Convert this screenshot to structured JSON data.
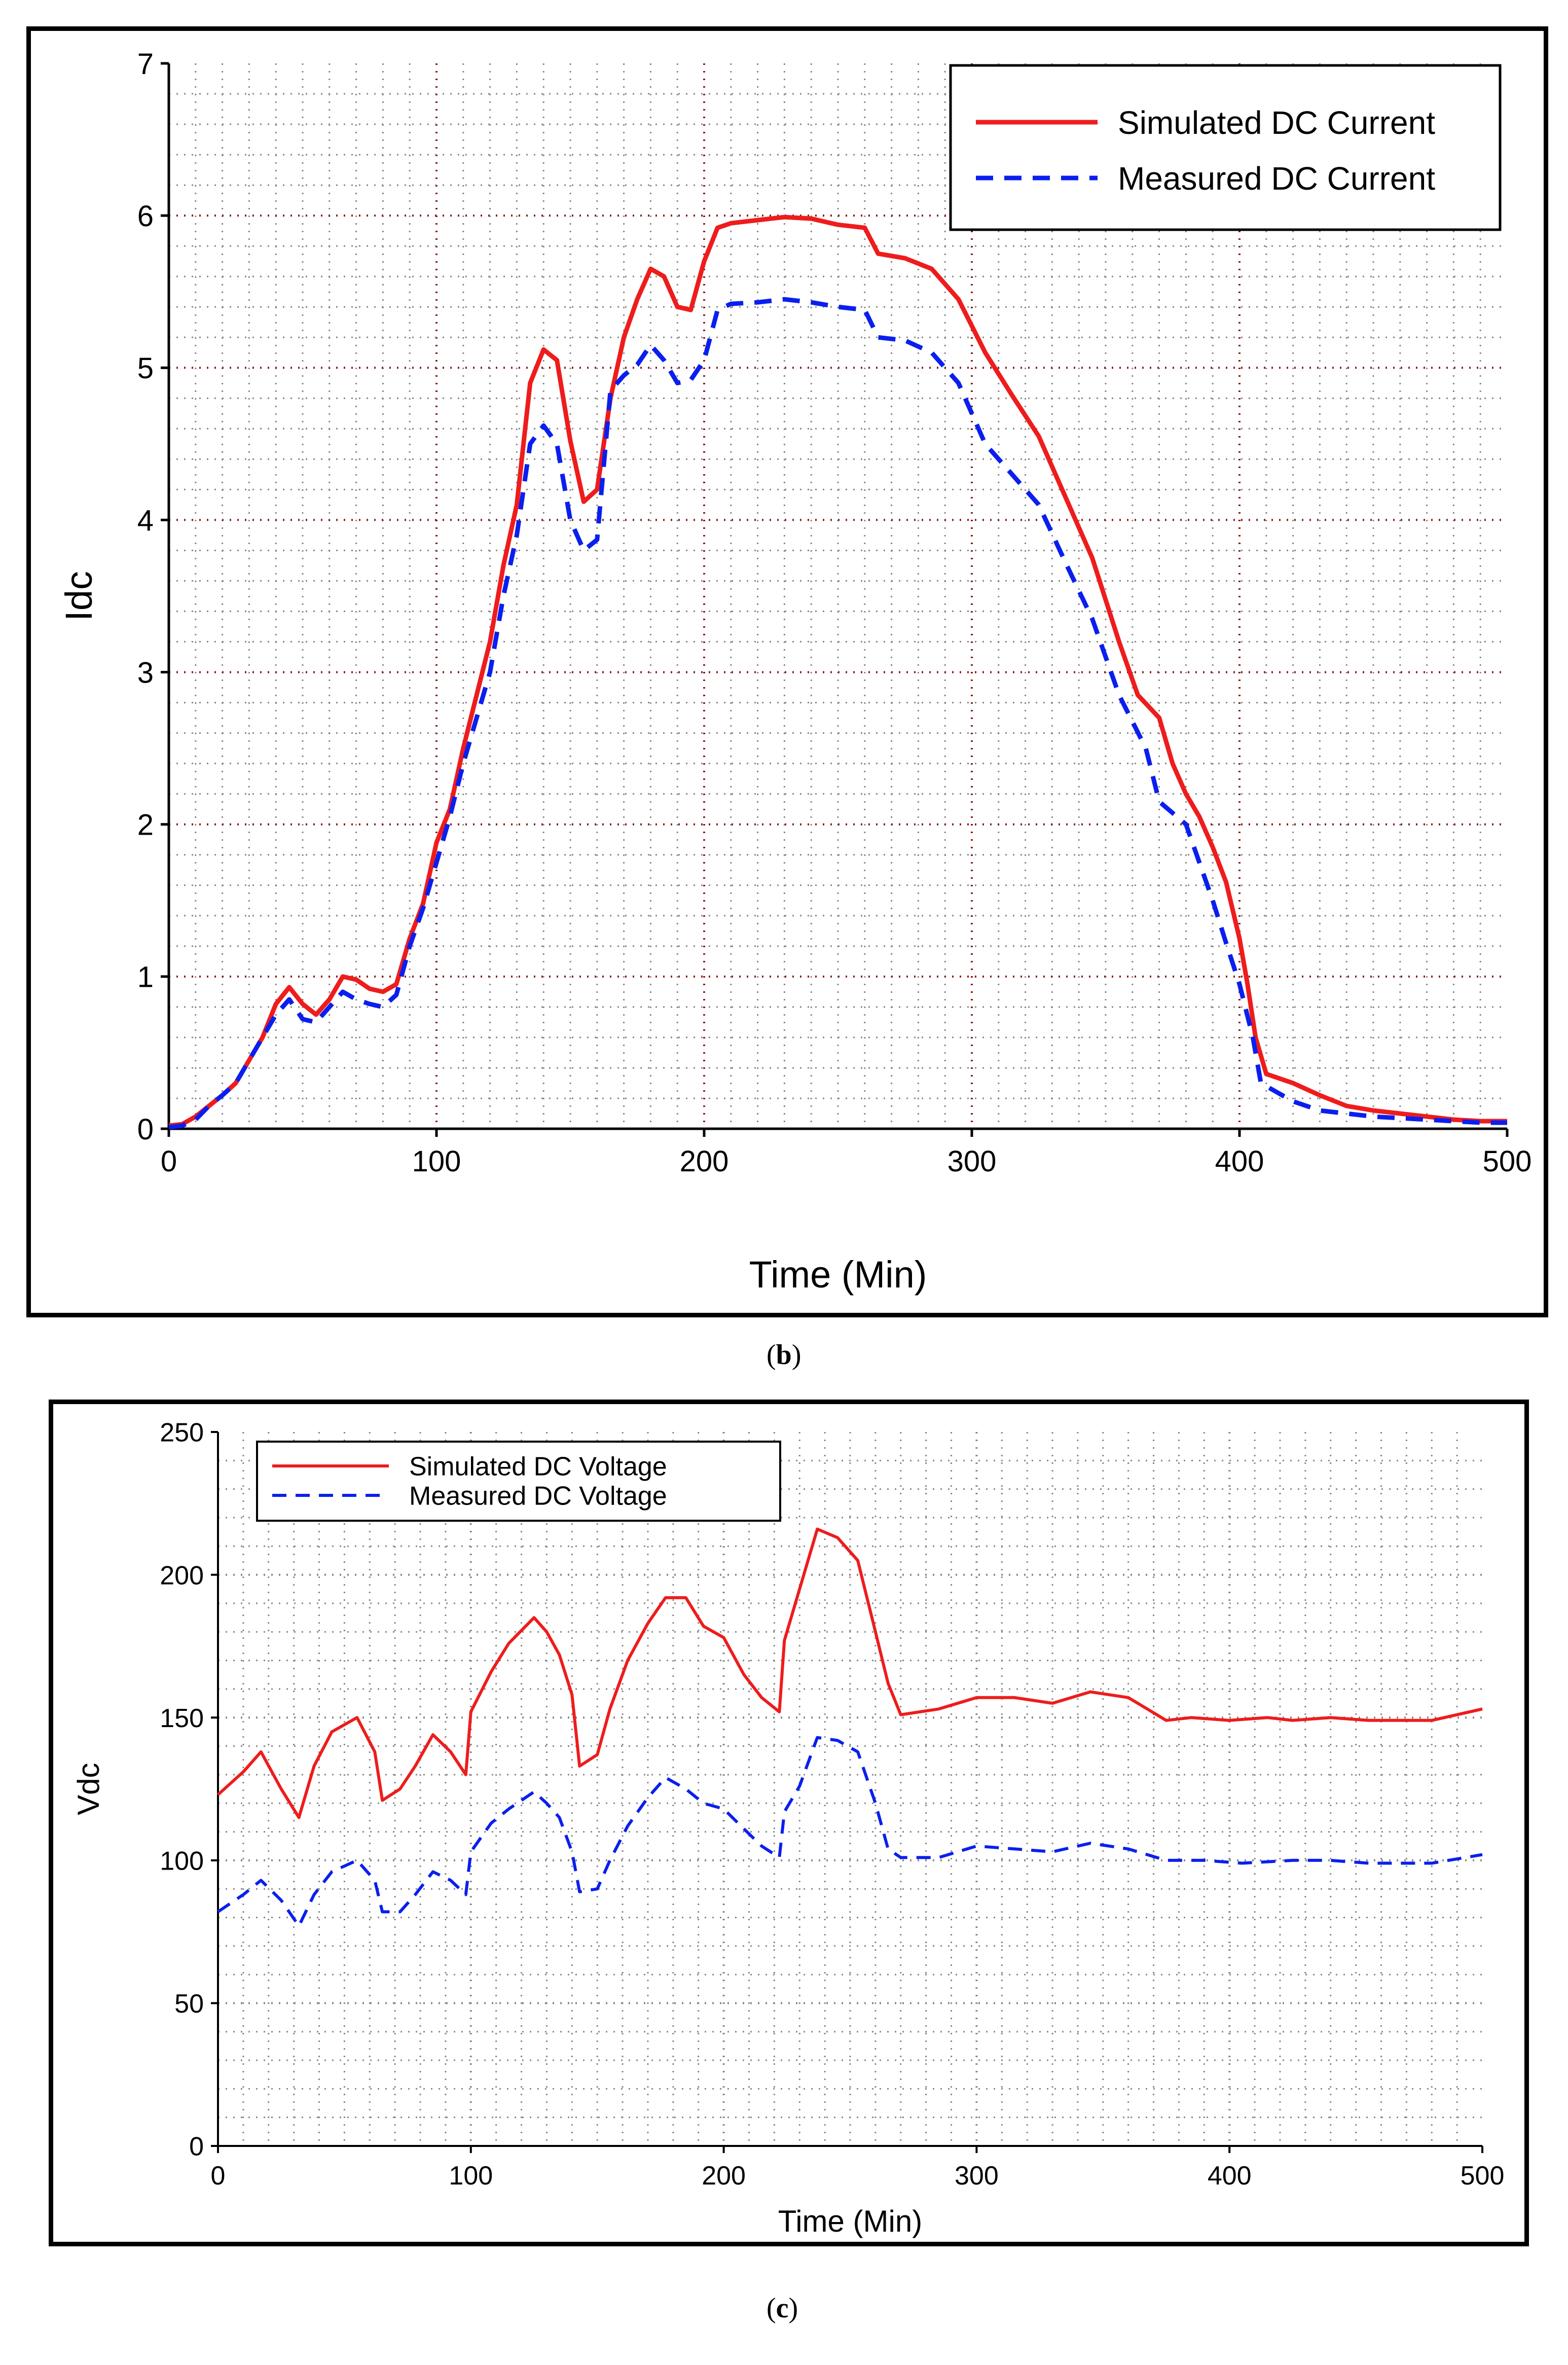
{
  "colors": {
    "simulated": "#ee1c1c",
    "measured": "#0a1fee",
    "grid": "#888888",
    "axis": "#000000"
  },
  "chart_data": [
    {
      "id": "chart-b",
      "type": "line",
      "caption_letter": "b",
      "xlabel": "Time (Min)",
      "ylabel": "Idc",
      "xlim": [
        0,
        500
      ],
      "ylim": [
        0,
        7
      ],
      "xticks": [
        0,
        100,
        200,
        300,
        400,
        500
      ],
      "xtick_labels": [
        "0",
        "100",
        "200",
        "300",
        "400",
        "500"
      ],
      "yticks": [
        0,
        1,
        2,
        3,
        4,
        5,
        6,
        7
      ],
      "ytick_labels": [
        "0",
        "1",
        "2",
        "3",
        "4",
        "5",
        "6",
        "7"
      ],
      "grid": true,
      "legend_position": "top-right",
      "series": [
        {
          "name": "Simulated DC Current",
          "style": "solid",
          "points": [
            [
              0,
              0.02
            ],
            [
              5,
              0.03
            ],
            [
              10,
              0.08
            ],
            [
              15,
              0.15
            ],
            [
              20,
              0.22
            ],
            [
              25,
              0.3
            ],
            [
              30,
              0.45
            ],
            [
              35,
              0.6
            ],
            [
              40,
              0.82
            ],
            [
              45,
              0.93
            ],
            [
              50,
              0.82
            ],
            [
              55,
              0.75
            ],
            [
              60,
              0.85
            ],
            [
              65,
              1.0
            ],
            [
              70,
              0.98
            ],
            [
              75,
              0.92
            ],
            [
              80,
              0.9
            ],
            [
              85,
              0.95
            ],
            [
              90,
              1.25
            ],
            [
              95,
              1.48
            ],
            [
              100,
              1.88
            ],
            [
              105,
              2.1
            ],
            [
              110,
              2.5
            ],
            [
              115,
              2.85
            ],
            [
              120,
              3.2
            ],
            [
              125,
              3.7
            ],
            [
              130,
              4.1
            ],
            [
              135,
              4.9
            ],
            [
              140,
              5.12
            ],
            [
              145,
              5.05
            ],
            [
              150,
              4.52
            ],
            [
              155,
              4.12
            ],
            [
              160,
              4.2
            ],
            [
              165,
              4.8
            ],
            [
              170,
              5.2
            ],
            [
              175,
              5.45
            ],
            [
              180,
              5.65
            ],
            [
              185,
              5.6
            ],
            [
              190,
              5.4
            ],
            [
              195,
              5.38
            ],
            [
              200,
              5.7
            ],
            [
              205,
              5.92
            ],
            [
              210,
              5.95
            ],
            [
              220,
              5.97
            ],
            [
              230,
              5.99
            ],
            [
              240,
              5.98
            ],
            [
              250,
              5.94
            ],
            [
              260,
              5.92
            ],
            [
              265,
              5.75
            ],
            [
              275,
              5.72
            ],
            [
              285,
              5.65
            ],
            [
              295,
              5.45
            ],
            [
              305,
              5.1
            ],
            [
              315,
              4.82
            ],
            [
              325,
              4.55
            ],
            [
              335,
              4.15
            ],
            [
              345,
              3.75
            ],
            [
              355,
              3.2
            ],
            [
              362,
              2.85
            ],
            [
              370,
              2.7
            ],
            [
              375,
              2.4
            ],
            [
              380,
              2.2
            ],
            [
              385,
              2.05
            ],
            [
              390,
              1.85
            ],
            [
              395,
              1.62
            ],
            [
              400,
              1.25
            ],
            [
              403,
              0.95
            ],
            [
              406,
              0.6
            ],
            [
              410,
              0.36
            ],
            [
              420,
              0.3
            ],
            [
              430,
              0.22
            ],
            [
              440,
              0.15
            ],
            [
              450,
              0.12
            ],
            [
              460,
              0.1
            ],
            [
              470,
              0.08
            ],
            [
              480,
              0.06
            ],
            [
              490,
              0.05
            ],
            [
              500,
              0.05
            ]
          ]
        },
        {
          "name": "Measured DC Current",
          "style": "dashed",
          "points": [
            [
              0,
              0.01
            ],
            [
              5,
              0.02
            ],
            [
              10,
              0.06
            ],
            [
              15,
              0.15
            ],
            [
              20,
              0.22
            ],
            [
              25,
              0.3
            ],
            [
              30,
              0.45
            ],
            [
              35,
              0.6
            ],
            [
              40,
              0.75
            ],
            [
              45,
              0.85
            ],
            [
              50,
              0.72
            ],
            [
              55,
              0.7
            ],
            [
              60,
              0.8
            ],
            [
              65,
              0.9
            ],
            [
              70,
              0.85
            ],
            [
              75,
              0.82
            ],
            [
              80,
              0.8
            ],
            [
              85,
              0.88
            ],
            [
              90,
              1.2
            ],
            [
              95,
              1.45
            ],
            [
              100,
              1.75
            ],
            [
              105,
              2.05
            ],
            [
              110,
              2.4
            ],
            [
              115,
              2.7
            ],
            [
              120,
              3.0
            ],
            [
              125,
              3.5
            ],
            [
              130,
              3.9
            ],
            [
              135,
              4.5
            ],
            [
              140,
              4.62
            ],
            [
              145,
              4.5
            ],
            [
              150,
              4.0
            ],
            [
              155,
              3.8
            ],
            [
              160,
              3.87
            ],
            [
              165,
              4.85
            ],
            [
              170,
              4.95
            ],
            [
              175,
              5.02
            ],
            [
              180,
              5.15
            ],
            [
              185,
              5.05
            ],
            [
              190,
              4.9
            ],
            [
              195,
              4.92
            ],
            [
              200,
              5.05
            ],
            [
              205,
              5.38
            ],
            [
              210,
              5.42
            ],
            [
              220,
              5.43
            ],
            [
              230,
              5.45
            ],
            [
              240,
              5.43
            ],
            [
              250,
              5.4
            ],
            [
              260,
              5.38
            ],
            [
              265,
              5.2
            ],
            [
              275,
              5.18
            ],
            [
              285,
              5.1
            ],
            [
              295,
              4.9
            ],
            [
              305,
              4.5
            ],
            [
              315,
              4.3
            ],
            [
              325,
              4.1
            ],
            [
              335,
              3.72
            ],
            [
              345,
              3.35
            ],
            [
              355,
              2.85
            ],
            [
              365,
              2.5
            ],
            [
              370,
              2.15
            ],
            [
              380,
              2.0
            ],
            [
              385,
              1.75
            ],
            [
              390,
              1.5
            ],
            [
              395,
              1.22
            ],
            [
              400,
              0.95
            ],
            [
              405,
              0.6
            ],
            [
              408,
              0.3
            ],
            [
              420,
              0.18
            ],
            [
              430,
              0.12
            ],
            [
              440,
              0.1
            ],
            [
              450,
              0.08
            ],
            [
              460,
              0.07
            ],
            [
              470,
              0.06
            ],
            [
              480,
              0.05
            ],
            [
              490,
              0.04
            ],
            [
              500,
              0.04
            ]
          ]
        }
      ]
    },
    {
      "id": "chart-c",
      "type": "line",
      "caption_letter": "c",
      "xlabel": "Time (Min)",
      "ylabel": "Vdc",
      "xlim": [
        0,
        500
      ],
      "ylim": [
        0,
        250
      ],
      "xticks": [
        0,
        100,
        200,
        300,
        400,
        500
      ],
      "xtick_labels": [
        "0",
        "100",
        "200",
        "300",
        "400",
        "500"
      ],
      "yticks": [
        0,
        50,
        100,
        150,
        200,
        250
      ],
      "ytick_labels": [
        "0",
        "50",
        "100",
        "150",
        "200",
        "250"
      ],
      "grid": true,
      "legend_position": "top-left",
      "series": [
        {
          "name": "Simulated DC Voltage",
          "style": "solid",
          "points": [
            [
              0,
              123
            ],
            [
              10,
              131
            ],
            [
              17,
              138
            ],
            [
              25,
              125
            ],
            [
              32,
              115
            ],
            [
              38,
              133
            ],
            [
              45,
              145
            ],
            [
              55,
              150
            ],
            [
              62,
              138
            ],
            [
              65,
              121
            ],
            [
              72,
              125
            ],
            [
              78,
              133
            ],
            [
              85,
              144
            ],
            [
              92,
              138
            ],
            [
              98,
              130
            ],
            [
              100,
              152
            ],
            [
              108,
              166
            ],
            [
              115,
              176
            ],
            [
              125,
              185
            ],
            [
              130,
              180
            ],
            [
              135,
              172
            ],
            [
              140,
              158
            ],
            [
              143,
              133
            ],
            [
              150,
              137
            ],
            [
              155,
              153
            ],
            [
              162,
              170
            ],
            [
              170,
              183
            ],
            [
              177,
              192
            ],
            [
              185,
              192
            ],
            [
              192,
              182
            ],
            [
              200,
              178
            ],
            [
              208,
              165
            ],
            [
              215,
              157
            ],
            [
              222,
              152
            ],
            [
              224,
              177
            ],
            [
              230,
              195
            ],
            [
              237,
              216
            ],
            [
              245,
              213
            ],
            [
              253,
              205
            ],
            [
              260,
              180
            ],
            [
              265,
              162
            ],
            [
              270,
              151
            ],
            [
              285,
              153
            ],
            [
              300,
              157
            ],
            [
              315,
              157
            ],
            [
              330,
              155
            ],
            [
              345,
              159
            ],
            [
              360,
              157
            ],
            [
              375,
              149
            ],
            [
              385,
              150
            ],
            [
              400,
              149
            ],
            [
              415,
              150
            ],
            [
              425,
              149
            ],
            [
              440,
              150
            ],
            [
              455,
              149
            ],
            [
              480,
              149
            ],
            [
              500,
              153
            ]
          ]
        },
        {
          "name": "Measured DC Voltage",
          "style": "dashed",
          "points": [
            [
              0,
              82
            ],
            [
              10,
              88
            ],
            [
              17,
              93
            ],
            [
              25,
              86
            ],
            [
              32,
              77
            ],
            [
              38,
              88
            ],
            [
              45,
              96
            ],
            [
              55,
              100
            ],
            [
              62,
              93
            ],
            [
              65,
              82
            ],
            [
              72,
              82
            ],
            [
              78,
              88
            ],
            [
              85,
              96
            ],
            [
              92,
              93
            ],
            [
              98,
              88
            ],
            [
              100,
              103
            ],
            [
              108,
              113
            ],
            [
              115,
              118
            ],
            [
              125,
              124
            ],
            [
              130,
              120
            ],
            [
              135,
              115
            ],
            [
              140,
              103
            ],
            [
              143,
              89
            ],
            [
              150,
              90
            ],
            [
              155,
              100
            ],
            [
              162,
              112
            ],
            [
              170,
              122
            ],
            [
              177,
              129
            ],
            [
              185,
              125
            ],
            [
              192,
              120
            ],
            [
              200,
              118
            ],
            [
              208,
              111
            ],
            [
              215,
              105
            ],
            [
              222,
              101
            ],
            [
              224,
              117
            ],
            [
              230,
              126
            ],
            [
              237,
              143
            ],
            [
              245,
              142
            ],
            [
              253,
              138
            ],
            [
              260,
              120
            ],
            [
              265,
              104
            ],
            [
              270,
              101
            ],
            [
              285,
              101
            ],
            [
              300,
              105
            ],
            [
              315,
              104
            ],
            [
              330,
              103
            ],
            [
              345,
              106
            ],
            [
              360,
              104
            ],
            [
              375,
              100
            ],
            [
              390,
              100
            ],
            [
              405,
              99
            ],
            [
              425,
              100
            ],
            [
              440,
              100
            ],
            [
              455,
              99
            ],
            [
              480,
              99
            ],
            [
              500,
              102
            ]
          ]
        }
      ]
    }
  ]
}
